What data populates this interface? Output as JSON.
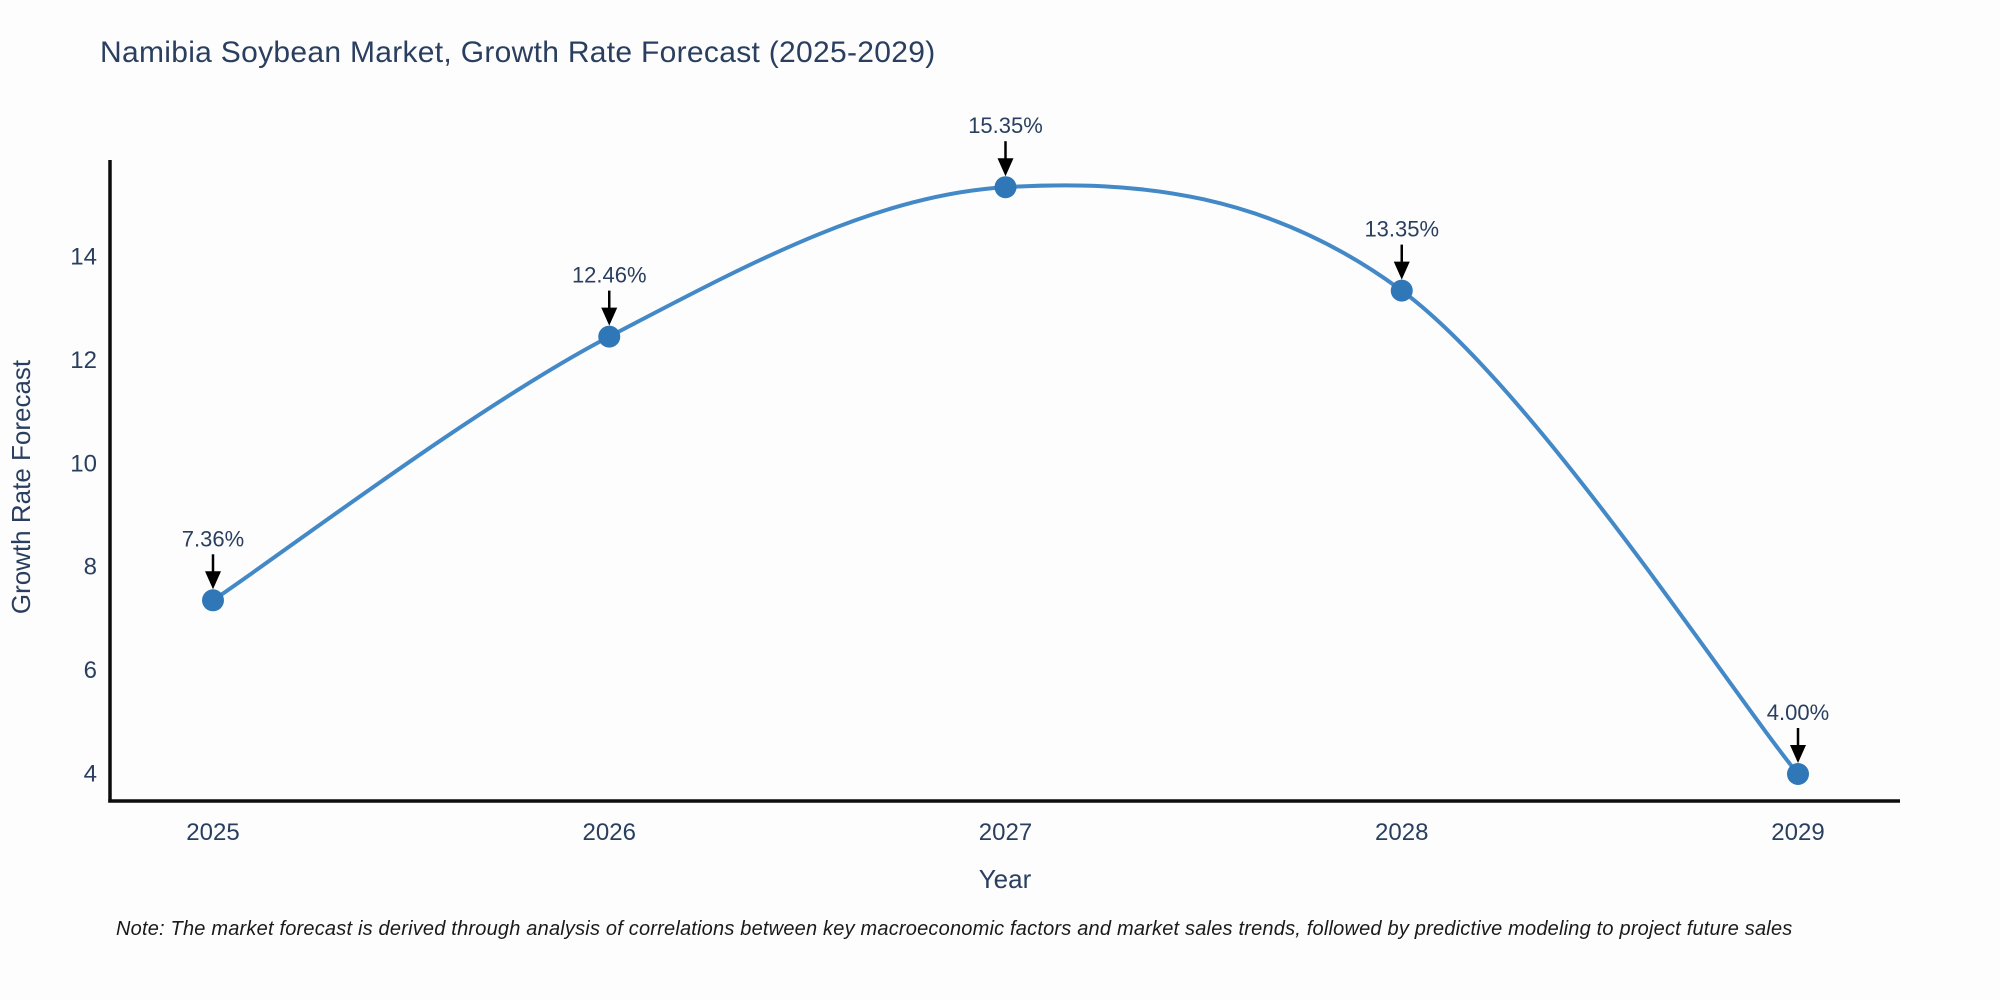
{
  "chart_data": {
    "type": "line",
    "title": "Namibia Soybean Market, Growth Rate Forecast (2025-2029)",
    "xlabel": "Year",
    "ylabel": "Growth Rate Forecast",
    "categories": [
      2025,
      2026,
      2027,
      2028,
      2029
    ],
    "values": [
      7.36,
      12.46,
      15.35,
      13.35,
      4.0
    ],
    "point_labels": [
      "7.36%",
      "12.46%",
      "15.35%",
      "13.35%",
      "4.00%"
    ],
    "y_ticks": [
      4,
      6,
      8,
      10,
      12,
      14
    ],
    "ylim": [
      3.45,
      15.9
    ],
    "line_shape": "spline",
    "grid": false,
    "legend_position": "none",
    "colors": {
      "line": "#4389c7",
      "marker": "#2f77b6",
      "axis": "#0d0d0d",
      "label_text": "#2a3f5f",
      "arrow": "#000000",
      "background": "#fdfdfd"
    }
  },
  "footnote": "Note: The market forecast is derived through analysis of correlations between key macroeconomic factors and market sales trends, followed by predictive modeling to project future sales"
}
